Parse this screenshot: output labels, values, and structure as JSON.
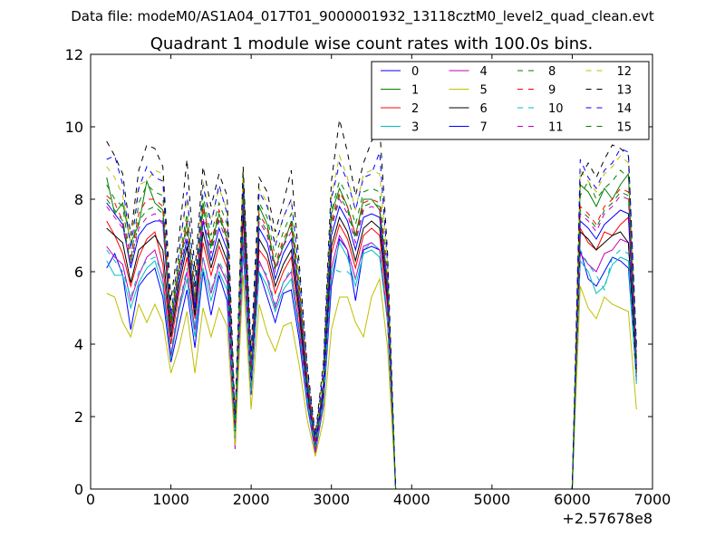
{
  "figure": {
    "suptitle": "Data file: modeM0/AS1A04_017T01_9000001932_13118cztM0_level2_quad_clean.evt",
    "title": "Quadrant 1 module wise count rates with 100.0s bins.",
    "x_offset_label": "+2.57678e8"
  },
  "chart_data": {
    "type": "line",
    "title": "Quadrant 1 module wise count rates with 100.0s bins.",
    "xlabel": "",
    "ylabel": "",
    "xlim": [
      0,
      7000
    ],
    "ylim": [
      0,
      12
    ],
    "x_offset": 257678000,
    "xticks": [
      0,
      1000,
      2000,
      3000,
      4000,
      5000,
      6000,
      7000
    ],
    "yticks": [
      0,
      2,
      4,
      6,
      8,
      10,
      12
    ],
    "grid": false,
    "legend_position": "top-right",
    "legend_columns": 4,
    "x": [
      200,
      300,
      400,
      500,
      600,
      700,
      800,
      900,
      1000,
      1100,
      1200,
      1300,
      1400,
      1500,
      1600,
      1700,
      1800,
      1900,
      2000,
      2100,
      2200,
      2300,
      2400,
      2500,
      2600,
      2700,
      2800,
      2900,
      3000,
      3100,
      3200,
      3300,
      3400,
      3500,
      3600,
      3700,
      3800,
      3900,
      4000,
      4100,
      4200,
      4300,
      4400,
      4500,
      4600,
      4700,
      4800,
      4900,
      5000,
      5100,
      5200,
      5300,
      5400,
      5500,
      5600,
      5700,
      5800,
      5900,
      6000,
      6100,
      6200,
      6300,
      6400,
      6500,
      6600,
      6700,
      6800
    ],
    "series": [
      {
        "name": "0",
        "color": "#0000ff",
        "dash": "solid",
        "values": [
          6.1,
          6.5,
          5.9,
          4.4,
          5.6,
          5.9,
          6.1,
          5.3,
          3.5,
          4.5,
          5.5,
          3.9,
          6.0,
          4.8,
          5.9,
          5.2,
          1.3,
          6.6,
          2.6,
          6.0,
          5.3,
          4.6,
          5.4,
          5.5,
          4.1,
          2.3,
          1.0,
          2.3,
          5.6,
          6.9,
          6.6,
          5.2,
          6.6,
          6.7,
          6.6,
          4.6,
          0,
          0,
          0,
          0,
          0,
          0,
          0,
          0,
          0,
          0,
          0,
          0,
          0,
          0,
          0,
          0,
          0,
          0,
          0,
          0,
          0,
          0,
          0,
          6.6,
          5.8,
          5.6,
          6.0,
          6.4,
          6.3,
          6.1,
          3.0
        ]
      },
      {
        "name": "1",
        "color": "#008000",
        "dash": "solid",
        "values": [
          8.6,
          7.6,
          7.9,
          6.8,
          7.3,
          8.5,
          7.9,
          7.7,
          4.6,
          6.1,
          7.4,
          5.2,
          7.9,
          6.7,
          7.6,
          6.9,
          1.7,
          8.7,
          3.4,
          7.8,
          7.3,
          6.1,
          6.7,
          7.4,
          5.4,
          3.0,
          1.3,
          2.9,
          7.6,
          8.3,
          7.8,
          7.0,
          8.0,
          8.0,
          7.7,
          5.6,
          0,
          0,
          0,
          0,
          0,
          0,
          0,
          0,
          0,
          0,
          0,
          0,
          0,
          0,
          0,
          0,
          0,
          0,
          0,
          0,
          0,
          0,
          0,
          8.4,
          8.2,
          7.8,
          8.3,
          8.0,
          8.4,
          8.7,
          3.6
        ]
      },
      {
        "name": "2",
        "color": "#ff0000",
        "dash": "solid",
        "values": [
          7.4,
          7.0,
          6.5,
          5.6,
          6.4,
          6.9,
          7.1,
          6.2,
          4.0,
          5.4,
          6.4,
          4.7,
          6.8,
          5.9,
          6.7,
          6.1,
          1.5,
          7.5,
          2.9,
          6.6,
          6.3,
          5.4,
          6.0,
          6.4,
          4.7,
          2.6,
          1.1,
          2.6,
          6.5,
          7.3,
          6.9,
          6.1,
          7.0,
          7.2,
          7.0,
          5.0,
          0,
          0,
          0,
          0,
          0,
          0,
          0,
          0,
          0,
          0,
          0,
          0,
          0,
          0,
          0,
          0,
          0,
          0,
          0,
          0,
          0,
          0,
          0,
          7.2,
          6.8,
          6.6,
          7.1,
          7.0,
          7.3,
          7.5,
          3.3
        ]
      },
      {
        "name": "3",
        "color": "#00bfbf",
        "dash": "solid",
        "values": [
          6.3,
          5.9,
          5.9,
          5.0,
          5.7,
          6.1,
          6.3,
          5.6,
          3.6,
          4.9,
          5.8,
          4.2,
          6.1,
          5.2,
          6.0,
          5.5,
          1.4,
          6.7,
          2.7,
          6.0,
          5.6,
          4.9,
          5.5,
          5.8,
          4.3,
          2.4,
          1.0,
          2.4,
          5.9,
          6.8,
          6.4,
          5.6,
          6.5,
          6.6,
          6.4,
          4.6,
          0,
          0,
          0,
          0,
          0,
          0,
          0,
          0,
          0,
          0,
          0,
          0,
          0,
          0,
          0,
          0,
          0,
          0,
          0,
          0,
          0,
          0,
          0,
          6.3,
          6.0,
          5.4,
          5.6,
          6.2,
          6.4,
          6.3,
          2.9
        ]
      },
      {
        "name": "4",
        "color": "#bf00bf",
        "dash": "solid",
        "values": [
          6.7,
          6.4,
          6.2,
          5.2,
          5.9,
          6.4,
          6.6,
          5.8,
          3.7,
          5.0,
          6.0,
          4.4,
          6.4,
          5.4,
          6.2,
          5.7,
          1.1,
          6.9,
          2.8,
          6.3,
          5.8,
          5.0,
          5.7,
          6.0,
          4.4,
          2.5,
          1.0,
          2.5,
          6.1,
          7.0,
          6.6,
          5.8,
          6.7,
          6.8,
          6.6,
          4.7,
          0,
          0,
          0,
          0,
          0,
          0,
          0,
          0,
          0,
          0,
          0,
          0,
          0,
          0,
          0,
          0,
          0,
          0,
          0,
          0,
          0,
          0,
          0,
          6.5,
          6.2,
          6.0,
          6.5,
          6.6,
          6.9,
          6.8,
          3.1
        ]
      },
      {
        "name": "5",
        "color": "#bfbf00",
        "dash": "solid",
        "values": [
          5.4,
          5.3,
          4.6,
          4.2,
          5.1,
          4.6,
          5.1,
          4.6,
          3.2,
          3.9,
          4.9,
          3.2,
          5.0,
          4.2,
          5.0,
          4.5,
          1.2,
          5.9,
          2.2,
          5.1,
          4.3,
          3.8,
          4.5,
          4.6,
          3.4,
          1.9,
          0.9,
          1.9,
          4.4,
          5.3,
          5.3,
          4.6,
          4.2,
          5.3,
          5.8,
          3.9,
          0,
          0,
          0,
          0,
          0,
          0,
          0,
          0,
          0,
          0,
          0,
          0,
          0,
          0,
          0,
          0,
          0,
          0,
          0,
          0,
          0,
          0,
          0,
          5.6,
          5.0,
          4.7,
          5.3,
          5.1,
          5.0,
          4.9,
          2.2
        ]
      },
      {
        "name": "6",
        "color": "#000000",
        "dash": "solid",
        "values": [
          7.2,
          7.0,
          6.8,
          5.7,
          6.6,
          6.8,
          7.0,
          6.6,
          4.2,
          5.6,
          6.7,
          4.8,
          7.1,
          6.1,
          6.9,
          6.3,
          1.6,
          7.7,
          3.0,
          6.9,
          6.5,
          5.6,
          6.2,
          6.6,
          4.9,
          2.7,
          1.2,
          2.7,
          6.7,
          7.5,
          7.1,
          6.3,
          7.2,
          7.4,
          7.2,
          5.2,
          0,
          0,
          0,
          0,
          0,
          0,
          0,
          0,
          0,
          0,
          0,
          0,
          0,
          0,
          0,
          0,
          0,
          0,
          0,
          0,
          0,
          0,
          0,
          7.1,
          6.9,
          6.6,
          6.8,
          7.0,
          7.1,
          6.8,
          3.2
        ]
      },
      {
        "name": "7",
        "color": "#0000ff",
        "dash": "solid",
        "values": [
          7.9,
          7.6,
          7.3,
          6.1,
          7.0,
          7.3,
          7.4,
          7.4,
          4.4,
          5.8,
          6.9,
          5.0,
          7.4,
          6.3,
          7.2,
          6.6,
          1.7,
          8.0,
          3.1,
          7.2,
          6.8,
          5.8,
          6.5,
          6.9,
          5.1,
          2.8,
          1.2,
          2.8,
          7.0,
          7.8,
          7.4,
          6.6,
          7.5,
          7.6,
          7.5,
          5.4,
          0,
          0,
          0,
          0,
          0,
          0,
          0,
          0,
          0,
          0,
          0,
          0,
          0,
          0,
          0,
          0,
          0,
          0,
          0,
          0,
          0,
          0,
          0,
          7.4,
          7.2,
          6.9,
          7.3,
          7.5,
          7.7,
          7.6,
          3.4
        ]
      },
      {
        "name": "8",
        "color": "#008000",
        "dash": "dashed",
        "values": [
          8.4,
          8.0,
          7.8,
          6.3,
          7.9,
          8.4,
          8.2,
          8.1,
          4.7,
          6.3,
          7.6,
          5.5,
          8.1,
          7.0,
          7.9,
          7.3,
          1.8,
          8.6,
          3.4,
          7.9,
          7.5,
          6.4,
          7.1,
          7.6,
          5.6,
          3.1,
          1.3,
          3.1,
          7.7,
          8.5,
          8.1,
          7.3,
          8.2,
          8.3,
          8.2,
          5.9,
          0,
          0,
          0,
          0,
          0,
          0,
          0,
          0,
          0,
          0,
          0,
          0,
          0,
          0,
          0,
          0,
          0,
          0,
          0,
          0,
          0,
          0,
          0,
          8.1,
          8.5,
          8.0,
          8.3,
          8.5,
          8.8,
          8.6,
          3.8
        ]
      },
      {
        "name": "9",
        "color": "#ff0000",
        "dash": "dashed",
        "values": [
          8.1,
          7.9,
          7.4,
          6.4,
          7.6,
          8.0,
          8.0,
          7.8,
          4.5,
          6.1,
          7.4,
          5.3,
          7.8,
          6.8,
          7.7,
          7.0,
          1.7,
          8.3,
          3.3,
          7.6,
          7.2,
          6.2,
          6.9,
          7.3,
          5.4,
          3.0,
          1.3,
          3.0,
          7.4,
          8.2,
          7.8,
          7.0,
          7.9,
          8.0,
          7.9,
          5.7,
          0,
          0,
          0,
          0,
          0,
          0,
          0,
          0,
          0,
          0,
          0,
          0,
          0,
          0,
          0,
          0,
          0,
          0,
          0,
          0,
          0,
          0,
          0,
          7.8,
          7.6,
          7.3,
          7.8,
          8.0,
          8.3,
          8.2,
          3.6
        ]
      },
      {
        "name": "10",
        "color": "#00bfbf",
        "dash": "dashed",
        "values": [
          6.6,
          6.3,
          6.0,
          5.3,
          6.0,
          6.3,
          6.4,
          5.9,
          3.8,
          5.1,
          6.1,
          4.5,
          6.4,
          5.5,
          6.3,
          5.8,
          1.4,
          7.0,
          2.8,
          6.2,
          5.9,
          5.1,
          5.7,
          6.1,
          4.5,
          2.5,
          1.1,
          2.5,
          6.1,
          6.0,
          6.0,
          5.8,
          6.6,
          6.8,
          6.6,
          4.8,
          0,
          0,
          0,
          0,
          0,
          0,
          0,
          0,
          0,
          0,
          0,
          0,
          0,
          0,
          0,
          0,
          0,
          0,
          0,
          0,
          0,
          0,
          0,
          6.6,
          6.2,
          5.9,
          5.5,
          6.4,
          6.6,
          6.5,
          3.0
        ]
      },
      {
        "name": "11",
        "color": "#bf00bf",
        "dash": "dashed",
        "values": [
          7.8,
          7.5,
          7.2,
          6.2,
          7.2,
          7.5,
          7.6,
          7.3,
          4.3,
          5.9,
          7.1,
          5.1,
          7.5,
          6.5,
          7.4,
          6.8,
          1.7,
          8.0,
          3.2,
          7.4,
          7.0,
          6.0,
          6.7,
          7.1,
          5.2,
          2.9,
          1.2,
          2.9,
          7.2,
          8.0,
          7.6,
          6.8,
          7.7,
          7.8,
          7.7,
          5.6,
          0,
          0,
          0,
          0,
          0,
          0,
          0,
          0,
          0,
          0,
          0,
          0,
          0,
          0,
          0,
          0,
          0,
          0,
          0,
          0,
          0,
          0,
          0,
          7.6,
          7.4,
          7.1,
          7.6,
          7.8,
          8.1,
          8.0,
          3.5
        ]
      },
      {
        "name": "12",
        "color": "#bfbf00",
        "dash": "dashed",
        "values": [
          8.9,
          8.6,
          8.1,
          6.8,
          8.4,
          8.5,
          8.8,
          8.7,
          4.9,
          6.6,
          8.0,
          5.7,
          8.5,
          7.4,
          8.3,
          7.7,
          1.9,
          8.8,
          3.6,
          8.3,
          7.9,
          6.8,
          7.5,
          8.0,
          5.9,
          3.3,
          1.4,
          3.3,
          8.1,
          9.2,
          8.6,
          7.7,
          8.7,
          8.8,
          8.7,
          6.2,
          0,
          0,
          0,
          0,
          0,
          0,
          0,
          0,
          0,
          0,
          0,
          0,
          0,
          0,
          0,
          0,
          0,
          0,
          0,
          0,
          0,
          0,
          0,
          8.8,
          8.5,
          8.2,
          8.7,
          8.9,
          9.2,
          9.0,
          3.9
        ]
      },
      {
        "name": "13",
        "color": "#000000",
        "dash": "dashed",
        "values": [
          9.6,
          9.2,
          8.7,
          7.0,
          8.8,
          9.5,
          9.4,
          8.9,
          5.2,
          6.9,
          9.1,
          6.0,
          8.9,
          7.8,
          8.7,
          8.1,
          2.0,
          8.9,
          3.8,
          8.6,
          8.2,
          7.1,
          7.9,
          8.8,
          6.2,
          3.4,
          1.5,
          3.5,
          8.5,
          10.2,
          9.3,
          8.1,
          9.0,
          9.6,
          10.0,
          6.5,
          0,
          0,
          0,
          0,
          0,
          0,
          0,
          0,
          0,
          0,
          0,
          0,
          0,
          0,
          0,
          0,
          0,
          0,
          0,
          0,
          0,
          0,
          0,
          8.6,
          9.0,
          8.6,
          9.1,
          9.5,
          9.4,
          9.2,
          4.0
        ]
      },
      {
        "name": "14",
        "color": "#0000ff",
        "dash": "dashed",
        "values": [
          9.1,
          9.2,
          8.4,
          6.6,
          8.3,
          8.9,
          8.6,
          8.5,
          4.8,
          6.5,
          8.2,
          5.6,
          8.4,
          7.3,
          8.4,
          7.6,
          1.9,
          8.4,
          3.6,
          8.2,
          7.8,
          6.7,
          7.5,
          8.0,
          5.9,
          3.3,
          1.4,
          3.3,
          8.0,
          9.0,
          8.5,
          7.7,
          8.6,
          8.7,
          9.3,
          6.2,
          0,
          0,
          0,
          0,
          0,
          0,
          0,
          0,
          0,
          0,
          0,
          0,
          0,
          0,
          0,
          0,
          0,
          0,
          0,
          0,
          0,
          0,
          0,
          9.1,
          8.6,
          8.3,
          8.8,
          9.0,
          9.4,
          9.3,
          3.9
        ]
      },
      {
        "name": "15",
        "color": "#008000",
        "dash": "dashed",
        "values": [
          8.0,
          7.7,
          7.4,
          6.2,
          7.4,
          7.7,
          7.8,
          7.6,
          4.4,
          6.0,
          7.2,
          5.2,
          7.7,
          6.6,
          7.5,
          6.9,
          1.7,
          8.1,
          3.2,
          7.5,
          7.1,
          6.1,
          6.8,
          7.2,
          5.3,
          2.9,
          1.2,
          2.9,
          7.3,
          8.1,
          7.7,
          6.9,
          7.8,
          7.9,
          7.8,
          5.7,
          0,
          0,
          0,
          0,
          0,
          0,
          0,
          0,
          0,
          0,
          0,
          0,
          0,
          0,
          0,
          0,
          0,
          0,
          0,
          0,
          0,
          0,
          0,
          7.7,
          7.5,
          7.2,
          7.7,
          7.9,
          8.2,
          8.1,
          3.6
        ]
      }
    ]
  }
}
